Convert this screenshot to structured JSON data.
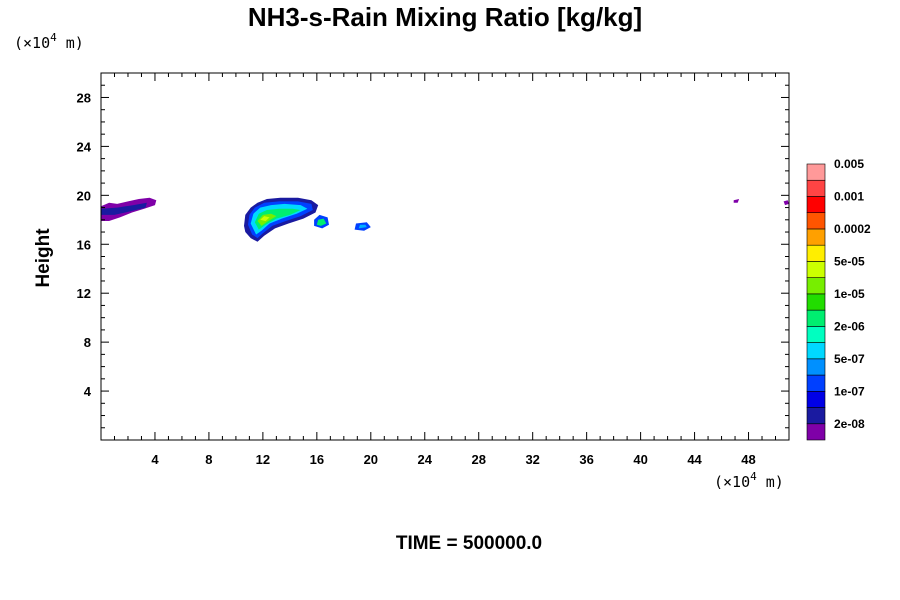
{
  "chart_data": {
    "type": "heatmap",
    "title": "NH3-s-Rain Mixing Ratio [kg/kg]",
    "xlabel": "",
    "ylabel": "Height",
    "x_unit": {
      "prefix": "(×10",
      "exp": "4",
      "suffix": " m)"
    },
    "y_unit": {
      "prefix": "(×10",
      "exp": "4",
      "suffix": " m)"
    },
    "xlim": [
      0,
      51
    ],
    "ylim": [
      0,
      30
    ],
    "xticks": [
      4,
      8,
      12,
      16,
      20,
      24,
      28,
      32,
      36,
      40,
      44,
      48
    ],
    "yticks": [
      4,
      8,
      12,
      16,
      20,
      24,
      28
    ],
    "grid": false,
    "footer": "TIME = 500000.0",
    "colorbar": {
      "colors": [
        "#7f00a8",
        "#1a1aa0",
        "#0000e6",
        "#0040ff",
        "#0090ff",
        "#00d8ff",
        "#00ffc0",
        "#00ee70",
        "#22dd00",
        "#77ee00",
        "#ccff00",
        "#ffee00",
        "#ffa000",
        "#ff5500",
        "#ff0000",
        "#ff4444",
        "#ff9999"
      ],
      "labels": [
        "2e-08",
        "1e-07",
        "5e-07",
        "2e-06",
        "1e-05",
        "5e-05",
        "0.0002",
        "0.001",
        "0.005"
      ]
    },
    "features": [
      {
        "name": "left-band",
        "outer": [
          [
            0,
            17.9
          ],
          [
            0,
            19.1
          ],
          [
            0.6,
            19.4
          ],
          [
            1.2,
            19.3
          ],
          [
            2,
            19.5
          ],
          [
            2.8,
            19.7
          ],
          [
            3.6,
            19.8
          ],
          [
            4.1,
            19.6
          ],
          [
            4,
            19.2
          ],
          [
            3.2,
            18.9
          ],
          [
            2.3,
            18.6
          ],
          [
            1.4,
            18.2
          ],
          [
            0.6,
            17.9
          ]
        ],
        "inner": [
          [
            0,
            18.4
          ],
          [
            0,
            18.9
          ],
          [
            1.2,
            19.0
          ],
          [
            2.4,
            19.2
          ],
          [
            3.4,
            19.4
          ],
          [
            3.3,
            19.0
          ],
          [
            2.2,
            18.7
          ],
          [
            1.0,
            18.4
          ]
        ],
        "outer_color": "#7f00a8",
        "inner_color": "#1a1aa0"
      },
      {
        "name": "central-cloud",
        "layers": [
          {
            "color": "#1a1aa0",
            "points": [
              [
                10.6,
                17.5
              ],
              [
                10.7,
                18.4
              ],
              [
                11.1,
                19.0
              ],
              [
                11.6,
                19.4
              ],
              [
                12.3,
                19.7
              ],
              [
                13.3,
                19.8
              ],
              [
                14.6,
                19.8
              ],
              [
                15.6,
                19.6
              ],
              [
                16.1,
                19.2
              ],
              [
                15.9,
                18.6
              ],
              [
                15.0,
                18.1
              ],
              [
                13.9,
                17.7
              ],
              [
                12.9,
                17.3
              ],
              [
                12.1,
                16.7
              ],
              [
                11.6,
                16.2
              ],
              [
                11.1,
                16.5
              ],
              [
                10.7,
                17.0
              ]
            ]
          },
          {
            "color": "#0040ff",
            "points": [
              [
                10.9,
                17.6
              ],
              [
                11.0,
                18.4
              ],
              [
                11.4,
                19.0
              ],
              [
                12.1,
                19.4
              ],
              [
                13.2,
                19.5
              ],
              [
                14.6,
                19.5
              ],
              [
                15.6,
                19.3
              ],
              [
                15.7,
                18.8
              ],
              [
                14.8,
                18.3
              ],
              [
                13.7,
                17.9
              ],
              [
                12.7,
                17.5
              ],
              [
                12.0,
                16.9
              ],
              [
                11.6,
                16.5
              ],
              [
                11.2,
                16.8
              ]
            ]
          },
          {
            "color": "#00d8ff",
            "points": [
              [
                11.1,
                17.7
              ],
              [
                11.3,
                18.5
              ],
              [
                11.8,
                19.0
              ],
              [
                12.6,
                19.2
              ],
              [
                13.6,
                19.3
              ],
              [
                14.8,
                19.2
              ],
              [
                15.3,
                18.9
              ],
              [
                14.5,
                18.5
              ],
              [
                13.4,
                18.1
              ],
              [
                12.5,
                17.7
              ],
              [
                11.9,
                17.1
              ],
              [
                11.5,
                16.8
              ]
            ]
          },
          {
            "color": "#00ee70",
            "points": [
              [
                11.4,
                17.8
              ],
              [
                11.7,
                18.5
              ],
              [
                12.3,
                18.8
              ],
              [
                13.2,
                18.9
              ],
              [
                14.2,
                18.9
              ],
              [
                14.8,
                18.8
              ],
              [
                14.0,
                18.4
              ],
              [
                13.0,
                18.1
              ],
              [
                12.2,
                17.6
              ],
              [
                11.7,
                17.2
              ]
            ]
          },
          {
            "color": "#77ee00",
            "points": [
              [
                11.6,
                17.9
              ],
              [
                12.0,
                18.4
              ],
              [
                12.6,
                18.5
              ],
              [
                13.0,
                18.3
              ],
              [
                12.4,
                17.9
              ],
              [
                11.9,
                17.5
              ]
            ]
          },
          {
            "color": "#ccff00",
            "points": [
              [
                11.8,
                18.0
              ],
              [
                12.1,
                18.3
              ],
              [
                12.5,
                18.2
              ],
              [
                12.2,
                17.9
              ]
            ]
          }
        ]
      },
      {
        "name": "small-cell",
        "layers": [
          {
            "color": "#0040ff",
            "points": [
              [
                15.8,
                17.5
              ],
              [
                15.8,
                18.0
              ],
              [
                16.2,
                18.4
              ],
              [
                16.8,
                18.2
              ],
              [
                16.9,
                17.6
              ],
              [
                16.4,
                17.3
              ]
            ]
          },
          {
            "color": "#00ee70",
            "points": [
              [
                16.0,
                17.6
              ],
              [
                16.1,
                18.0
              ],
              [
                16.5,
                18.1
              ],
              [
                16.7,
                17.7
              ],
              [
                16.3,
                17.5
              ]
            ]
          }
        ]
      },
      {
        "name": "far-cell",
        "layers": [
          {
            "color": "#0040ff",
            "points": [
              [
                18.8,
                17.2
              ],
              [
                18.9,
                17.7
              ],
              [
                19.7,
                17.8
              ],
              [
                20.0,
                17.4
              ],
              [
                19.5,
                17.1
              ]
            ]
          },
          {
            "color": "#00b0ff",
            "points": [
              [
                19.1,
                17.3
              ],
              [
                19.2,
                17.6
              ],
              [
                19.6,
                17.6
              ],
              [
                19.7,
                17.4
              ]
            ]
          }
        ]
      },
      {
        "name": "speck-right-1",
        "points": [
          [
            46.9,
            19.6
          ],
          [
            47.3,
            19.7
          ],
          [
            47.2,
            19.4
          ],
          [
            46.9,
            19.4
          ]
        ],
        "color": "#7f00a8"
      },
      {
        "name": "speck-right-2",
        "points": [
          [
            50.6,
            19.5
          ],
          [
            50.9,
            19.6
          ],
          [
            51,
            19.3
          ],
          [
            50.7,
            19.2
          ]
        ],
        "color": "#7f00a8"
      }
    ]
  }
}
